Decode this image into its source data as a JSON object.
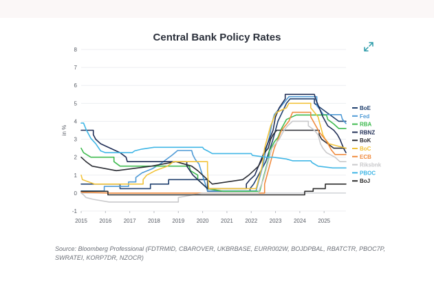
{
  "page": {
    "title": "Central Bank Policy Rates",
    "expand_icon": "expand-icon",
    "source": "Source: Bloomberg Professional (FDTRMID, CBAROVER, UKBRBASE, EURR002W, BOJDPBAL, RBATCTR, PBOC7P, SWRATEI, KORP7DR, NZOCR)"
  },
  "chart_data": {
    "type": "line",
    "title": "Central Bank Policy Rates",
    "xlabel": "",
    "ylabel": "in %",
    "xlim": [
      2015,
      2025.9
    ],
    "ylim": [
      -1,
      8
    ],
    "x_ticks": [
      "2015",
      "2016",
      "2017",
      "2018",
      "2019",
      "2020",
      "2021",
      "2022",
      "2023",
      "2024",
      "2025"
    ],
    "y_ticks": [
      "-1",
      "0",
      "1",
      "2",
      "3",
      "4",
      "5",
      "6",
      "7",
      "8"
    ],
    "grid": "horizontal",
    "legend": "right",
    "series": [
      {
        "name": "BoE",
        "color": "#1f3f6e",
        "points": [
          [
            2015,
            0.5
          ],
          [
            2016.6,
            0.5
          ],
          [
            2016.6,
            0.25
          ],
          [
            2017.85,
            0.25
          ],
          [
            2017.85,
            0.5
          ],
          [
            2018.6,
            0.5
          ],
          [
            2018.6,
            0.75
          ],
          [
            2020.2,
            0.75
          ],
          [
            2020.2,
            0.1
          ],
          [
            2021.95,
            0.1
          ],
          [
            2021.95,
            0.25
          ],
          [
            2022.1,
            0.5
          ],
          [
            2022.3,
            1.0
          ],
          [
            2022.6,
            1.75
          ],
          [
            2022.9,
            3.0
          ],
          [
            2023.1,
            4.0
          ],
          [
            2023.45,
            5.0
          ],
          [
            2023.6,
            5.25
          ],
          [
            2024.6,
            5.25
          ],
          [
            2024.6,
            5.0
          ],
          [
            2024.85,
            4.75
          ],
          [
            2025.1,
            4.5
          ],
          [
            2025.35,
            4.25
          ],
          [
            2025.6,
            4.0
          ],
          [
            2025.9,
            4.0
          ]
        ]
      },
      {
        "name": "Fed",
        "color": "#4e9ad6",
        "points": [
          [
            2015,
            0.12
          ],
          [
            2015.95,
            0.12
          ],
          [
            2015.95,
            0.37
          ],
          [
            2016.95,
            0.37
          ],
          [
            2016.95,
            0.62
          ],
          [
            2017.25,
            0.62
          ],
          [
            2017.25,
            0.87
          ],
          [
            2017.5,
            1.12
          ],
          [
            2017.95,
            1.37
          ],
          [
            2018.25,
            1.62
          ],
          [
            2018.5,
            1.87
          ],
          [
            2018.75,
            2.12
          ],
          [
            2018.97,
            2.37
          ],
          [
            2019.55,
            2.37
          ],
          [
            2019.6,
            2.12
          ],
          [
            2019.7,
            1.87
          ],
          [
            2019.85,
            1.62
          ],
          [
            2020.2,
            0.12
          ],
          [
            2022.2,
            0.12
          ],
          [
            2022.35,
            0.87
          ],
          [
            2022.5,
            1.62
          ],
          [
            2022.6,
            2.37
          ],
          [
            2022.75,
            3.12
          ],
          [
            2022.85,
            3.87
          ],
          [
            2022.95,
            4.37
          ],
          [
            2023.1,
            4.62
          ],
          [
            2023.4,
            5.12
          ],
          [
            2023.55,
            5.37
          ],
          [
            2024.7,
            5.37
          ],
          [
            2024.7,
            4.87
          ],
          [
            2024.85,
            4.62
          ],
          [
            2024.97,
            4.37
          ],
          [
            2025.7,
            4.37
          ],
          [
            2025.75,
            4.12
          ],
          [
            2025.9,
            3.87
          ]
        ]
      },
      {
        "name": "RBA",
        "color": "#3dba4e",
        "points": [
          [
            2015,
            2.5
          ],
          [
            2015.1,
            2.25
          ],
          [
            2015.4,
            2.0
          ],
          [
            2016.35,
            2.0
          ],
          [
            2016.35,
            1.75
          ],
          [
            2016.6,
            1.5
          ],
          [
            2019.45,
            1.5
          ],
          [
            2019.5,
            1.25
          ],
          [
            2019.8,
            1.0
          ],
          [
            2019.8,
            0.75
          ],
          [
            2020.2,
            0.25
          ],
          [
            2020.85,
            0.1
          ],
          [
            2022.35,
            0.1
          ],
          [
            2022.4,
            0.35
          ],
          [
            2022.5,
            0.85
          ],
          [
            2022.6,
            1.35
          ],
          [
            2022.7,
            1.85
          ],
          [
            2022.75,
            2.35
          ],
          [
            2022.85,
            2.6
          ],
          [
            2022.95,
            2.85
          ],
          [
            2023.1,
            3.1
          ],
          [
            2023.25,
            3.6
          ],
          [
            2023.45,
            4.1
          ],
          [
            2023.85,
            4.35
          ],
          [
            2025.1,
            4.35
          ],
          [
            2025.15,
            4.1
          ],
          [
            2025.4,
            3.85
          ],
          [
            2025.6,
            3.6
          ],
          [
            2025.9,
            3.6
          ]
        ]
      },
      {
        "name": "RBNZ",
        "color": "#1f2d55",
        "points": [
          [
            2015,
            3.5
          ],
          [
            2015.5,
            3.5
          ],
          [
            2015.5,
            3.25
          ],
          [
            2015.6,
            3.0
          ],
          [
            2015.8,
            2.75
          ],
          [
            2016.2,
            2.5
          ],
          [
            2016.6,
            2.25
          ],
          [
            2016.85,
            2.0
          ],
          [
            2016.9,
            1.75
          ],
          [
            2019.35,
            1.75
          ],
          [
            2019.35,
            1.5
          ],
          [
            2019.6,
            1.0
          ],
          [
            2020.2,
            0.25
          ],
          [
            2021.8,
            0.25
          ],
          [
            2021.8,
            0.5
          ],
          [
            2021.95,
            0.75
          ],
          [
            2022.15,
            1.0
          ],
          [
            2022.3,
            1.5
          ],
          [
            2022.45,
            2.0
          ],
          [
            2022.6,
            2.5
          ],
          [
            2022.75,
            3.0
          ],
          [
            2022.9,
            3.5
          ],
          [
            2023.0,
            4.25
          ],
          [
            2023.15,
            4.75
          ],
          [
            2023.4,
            5.25
          ],
          [
            2023.4,
            5.5
          ],
          [
            2024.6,
            5.5
          ],
          [
            2024.65,
            5.25
          ],
          [
            2024.8,
            4.75
          ],
          [
            2024.95,
            4.25
          ],
          [
            2025.15,
            3.75
          ],
          [
            2025.4,
            3.5
          ],
          [
            2025.55,
            3.25
          ],
          [
            2025.65,
            3.0
          ],
          [
            2025.8,
            2.5
          ],
          [
            2025.9,
            2.25
          ]
        ]
      },
      {
        "name": "BoK",
        "color": "#2a2c33",
        "points": [
          [
            2015,
            2.0
          ],
          [
            2015.2,
            1.75
          ],
          [
            2015.45,
            1.5
          ],
          [
            2016.45,
            1.25
          ],
          [
            2017.9,
            1.5
          ],
          [
            2018.9,
            1.75
          ],
          [
            2019.55,
            1.5
          ],
          [
            2019.8,
            1.25
          ],
          [
            2020.2,
            0.75
          ],
          [
            2020.4,
            0.5
          ],
          [
            2021.65,
            0.75
          ],
          [
            2021.9,
            1.0
          ],
          [
            2022.1,
            1.25
          ],
          [
            2022.3,
            1.5
          ],
          [
            2022.4,
            1.75
          ],
          [
            2022.55,
            2.25
          ],
          [
            2022.7,
            2.5
          ],
          [
            2022.8,
            3.0
          ],
          [
            2022.9,
            3.25
          ],
          [
            2023.05,
            3.5
          ],
          [
            2024.8,
            3.5
          ],
          [
            2024.8,
            3.25
          ],
          [
            2024.9,
            3.0
          ],
          [
            2025.15,
            2.75
          ],
          [
            2025.4,
            2.5
          ],
          [
            2025.9,
            2.5
          ]
        ]
      },
      {
        "name": "BoC",
        "color": "#f2c33a",
        "points": [
          [
            2015,
            1.0
          ],
          [
            2015.05,
            0.75
          ],
          [
            2015.55,
            0.5
          ],
          [
            2017.55,
            0.5
          ],
          [
            2017.55,
            0.75
          ],
          [
            2017.7,
            1.0
          ],
          [
            2018.05,
            1.25
          ],
          [
            2018.55,
            1.5
          ],
          [
            2018.8,
            1.75
          ],
          [
            2020.2,
            1.75
          ],
          [
            2020.2,
            1.25
          ],
          [
            2020.25,
            0.25
          ],
          [
            2022.2,
            0.25
          ],
          [
            2022.25,
            0.5
          ],
          [
            2022.35,
            1.0
          ],
          [
            2022.45,
            1.5
          ],
          [
            2022.55,
            2.5
          ],
          [
            2022.7,
            3.25
          ],
          [
            2022.8,
            3.75
          ],
          [
            2022.95,
            4.25
          ],
          [
            2023.05,
            4.5
          ],
          [
            2023.45,
            4.75
          ],
          [
            2023.55,
            5.0
          ],
          [
            2024.45,
            5.0
          ],
          [
            2024.45,
            4.75
          ],
          [
            2024.6,
            4.5
          ],
          [
            2024.75,
            4.25
          ],
          [
            2024.85,
            3.75
          ],
          [
            2024.95,
            3.25
          ],
          [
            2025.05,
            3.0
          ],
          [
            2025.2,
            2.75
          ],
          [
            2025.9,
            2.5
          ]
        ]
      },
      {
        "name": "ECB",
        "color": "#f08a3c",
        "points": [
          [
            2015,
            0.05
          ],
          [
            2016.2,
            0.0
          ],
          [
            2022.55,
            0.0
          ],
          [
            2022.55,
            0.5
          ],
          [
            2022.7,
            1.25
          ],
          [
            2022.85,
            2.0
          ],
          [
            2022.95,
            2.5
          ],
          [
            2023.1,
            3.0
          ],
          [
            2023.25,
            3.5
          ],
          [
            2023.4,
            3.75
          ],
          [
            2023.55,
            4.0
          ],
          [
            2023.7,
            4.5
          ],
          [
            2024.45,
            4.5
          ],
          [
            2024.45,
            4.25
          ],
          [
            2024.7,
            3.65
          ],
          [
            2024.8,
            3.4
          ],
          [
            2024.95,
            3.15
          ],
          [
            2025.1,
            2.9
          ],
          [
            2025.2,
            2.65
          ],
          [
            2025.3,
            2.4
          ],
          [
            2025.45,
            2.15
          ],
          [
            2025.9,
            2.15
          ]
        ]
      },
      {
        "name": "Riksbnk",
        "color": "#c9c9cb",
        "points": [
          [
            2015,
            0.0
          ],
          [
            2015.1,
            -0.1
          ],
          [
            2015.2,
            -0.25
          ],
          [
            2015.5,
            -0.35
          ],
          [
            2016.15,
            -0.5
          ],
          [
            2019.0,
            -0.5
          ],
          [
            2019.0,
            -0.25
          ],
          [
            2020.0,
            0.0
          ],
          [
            2022.3,
            0.0
          ],
          [
            2022.35,
            0.25
          ],
          [
            2022.5,
            0.75
          ],
          [
            2022.7,
            1.75
          ],
          [
            2022.85,
            2.5
          ],
          [
            2023.15,
            3.0
          ],
          [
            2023.35,
            3.5
          ],
          [
            2023.5,
            3.75
          ],
          [
            2023.7,
            4.0
          ],
          [
            2024.35,
            4.0
          ],
          [
            2024.35,
            3.75
          ],
          [
            2024.6,
            3.5
          ],
          [
            2024.75,
            3.25
          ],
          [
            2024.85,
            2.75
          ],
          [
            2024.95,
            2.5
          ],
          [
            2025.1,
            2.25
          ],
          [
            2025.45,
            2.0
          ],
          [
            2025.65,
            1.75
          ],
          [
            2025.9,
            1.75
          ]
        ]
      },
      {
        "name": "PBOC",
        "color": "#3fb6e6",
        "points": [
          [
            2015,
            3.9
          ],
          [
            2015.1,
            3.9
          ],
          [
            2015.2,
            3.55
          ],
          [
            2015.4,
            3.05
          ],
          [
            2015.6,
            2.75
          ],
          [
            2015.8,
            2.35
          ],
          [
            2016.0,
            2.25
          ],
          [
            2017.1,
            2.25
          ],
          [
            2017.2,
            2.35
          ],
          [
            2017.5,
            2.45
          ],
          [
            2018.0,
            2.55
          ],
          [
            2020.0,
            2.55
          ],
          [
            2020.05,
            2.45
          ],
          [
            2020.2,
            2.35
          ],
          [
            2020.4,
            2.2
          ],
          [
            2022.0,
            2.2
          ],
          [
            2022.05,
            2.1
          ],
          [
            2022.6,
            2.0
          ],
          [
            2022.9,
            2.0
          ],
          [
            2023.45,
            1.9
          ],
          [
            2023.7,
            1.8
          ],
          [
            2024.45,
            1.8
          ],
          [
            2024.5,
            1.7
          ],
          [
            2024.75,
            1.5
          ],
          [
            2025.35,
            1.4
          ],
          [
            2025.9,
            1.4
          ]
        ]
      },
      {
        "name": "BoJ",
        "color": "#2b2b2b",
        "points": [
          [
            2015,
            0.1
          ],
          [
            2016.1,
            0.1
          ],
          [
            2016.1,
            -0.1
          ],
          [
            2024.2,
            -0.1
          ],
          [
            2024.2,
            0.1
          ],
          [
            2024.55,
            0.1
          ],
          [
            2024.55,
            0.25
          ],
          [
            2025.05,
            0.25
          ],
          [
            2025.05,
            0.5
          ],
          [
            2025.9,
            0.5
          ]
        ]
      }
    ]
  }
}
